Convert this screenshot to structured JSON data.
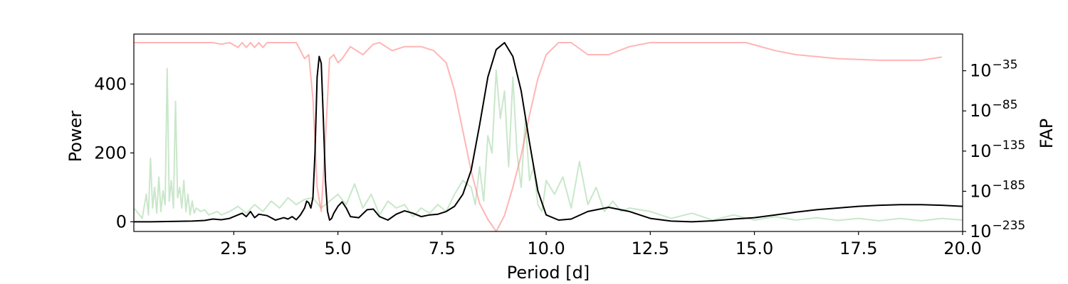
{
  "chart_data": {
    "type": "line",
    "title": "",
    "xlabel": "Period [d]",
    "ylabel": "Power",
    "y2label": "FAP",
    "xlim": [
      0.1,
      20.0
    ],
    "ylim": [
      -28,
      545
    ],
    "y2_log_exponent_range": [
      -235,
      0
    ],
    "x_ticks": [
      2.5,
      5.0,
      7.5,
      10.0,
      12.5,
      15.0,
      17.5,
      20.0
    ],
    "x_tick_labels": [
      "2.5",
      "5.0",
      "7.5",
      "10.0",
      "12.5",
      "15.0",
      "17.5",
      "20.0"
    ],
    "y_ticks": [
      0,
      200,
      400
    ],
    "y_tick_labels": [
      "0",
      "200",
      "400"
    ],
    "y2_ticks": [
      -235,
      -185,
      -135,
      -85,
      -35
    ],
    "y2_tick_base": "10",
    "y2_tick_exponents": [
      "−235",
      "−185",
      "−135",
      "−85",
      "−35"
    ],
    "grid": false,
    "colors": {
      "raw_power": "#4caf50",
      "smoothed_power": "#000000",
      "fap": "#ff6b6b"
    },
    "series": [
      {
        "role": "smoothed_power",
        "axis": "left",
        "x": [
          0.1,
          0.5,
          1.0,
          1.5,
          1.8,
          2.0,
          2.2,
          2.4,
          2.6,
          2.7,
          2.8,
          2.9,
          3.0,
          3.1,
          3.2,
          3.3,
          3.5,
          3.7,
          3.8,
          3.9,
          4.0,
          4.1,
          4.2,
          4.25,
          4.3,
          4.35,
          4.4,
          4.45,
          4.5,
          4.55,
          4.6,
          4.65,
          4.7,
          4.75,
          4.8,
          4.85,
          4.9,
          5.0,
          5.1,
          5.2,
          5.3,
          5.5,
          5.7,
          5.85,
          6.0,
          6.2,
          6.4,
          6.6,
          6.8,
          7.0,
          7.2,
          7.4,
          7.6,
          7.8,
          8.0,
          8.2,
          8.4,
          8.6,
          8.8,
          9.0,
          9.2,
          9.4,
          9.6,
          9.8,
          10.0,
          10.3,
          10.6,
          11.0,
          11.5,
          12.0,
          12.5,
          13.0,
          13.5,
          14.0,
          14.5,
          15.0,
          15.5,
          16.0,
          16.5,
          17.0,
          17.5,
          18.0,
          18.5,
          19.0,
          19.5,
          20.0
        ],
        "y": [
          0,
          0,
          1,
          2,
          4,
          8,
          6,
          10,
          20,
          25,
          15,
          30,
          12,
          22,
          20,
          18,
          5,
          12,
          8,
          15,
          6,
          20,
          40,
          60,
          55,
          40,
          70,
          200,
          420,
          480,
          460,
          300,
          120,
          30,
          5,
          10,
          25,
          45,
          58,
          40,
          15,
          12,
          35,
          37,
          15,
          5,
          22,
          32,
          25,
          15,
          20,
          22,
          30,
          45,
          80,
          150,
          280,
          420,
          500,
          520,
          480,
          380,
          230,
          90,
          20,
          5,
          8,
          30,
          42,
          30,
          10,
          2,
          0,
          3,
          8,
          12,
          20,
          28,
          35,
          40,
          45,
          48,
          50,
          50,
          48,
          45
        ]
      },
      {
        "role": "fap",
        "axis": "right",
        "x": [
          0.1,
          0.5,
          1.0,
          1.5,
          2.0,
          2.2,
          2.4,
          2.6,
          2.7,
          2.8,
          2.9,
          3.0,
          3.1,
          3.2,
          3.3,
          3.5,
          4.0,
          4.1,
          4.2,
          4.3,
          4.4,
          4.5,
          4.6,
          4.7,
          4.8,
          4.9,
          5.0,
          5.1,
          5.3,
          5.6,
          5.85,
          6.0,
          6.3,
          6.6,
          7.0,
          7.3,
          7.6,
          7.8,
          8.0,
          8.2,
          8.4,
          8.6,
          8.8,
          9.0,
          9.2,
          9.4,
          9.6,
          9.8,
          10.0,
          10.3,
          10.6,
          11.0,
          11.5,
          12.0,
          12.5,
          13.0,
          14.0,
          14.8,
          15.5,
          16.0,
          17.0,
          18.0,
          19.0,
          19.5
        ],
        "y": [
          0,
          0,
          0,
          0,
          0,
          -2,
          0,
          -6,
          0,
          -6,
          0,
          -6,
          0,
          -6,
          0,
          0,
          0,
          -10,
          -20,
          -15,
          -70,
          -180,
          -210,
          -120,
          -20,
          -15,
          -25,
          -20,
          -5,
          -15,
          -2,
          0,
          -10,
          -5,
          -5,
          -10,
          -25,
          -60,
          -110,
          -160,
          -200,
          -220,
          -235,
          -215,
          -180,
          -140,
          -90,
          -45,
          -15,
          0,
          0,
          -15,
          -15,
          -5,
          0,
          0,
          0,
          0,
          -10,
          -15,
          -20,
          -22,
          -22,
          -18
        ]
      },
      {
        "role": "raw_power",
        "axis": "left",
        "x": [
          0.1,
          0.3,
          0.4,
          0.45,
          0.5,
          0.55,
          0.6,
          0.65,
          0.7,
          0.75,
          0.8,
          0.85,
          0.9,
          0.95,
          1.0,
          1.05,
          1.1,
          1.15,
          1.2,
          1.25,
          1.3,
          1.35,
          1.4,
          1.45,
          1.5,
          1.55,
          1.6,
          1.7,
          1.8,
          1.9,
          2.0,
          2.1,
          2.2,
          2.4,
          2.6,
          2.8,
          3.0,
          3.2,
          3.4,
          3.6,
          3.8,
          4.0,
          4.2,
          4.4,
          4.6,
          4.8,
          5.0,
          5.2,
          5.4,
          5.6,
          5.8,
          6.0,
          6.2,
          6.4,
          6.6,
          6.8,
          7.0,
          7.2,
          7.4,
          7.6,
          7.8,
          8.0,
          8.2,
          8.3,
          8.4,
          8.5,
          8.6,
          8.7,
          8.8,
          8.9,
          9.0,
          9.1,
          9.2,
          9.3,
          9.4,
          9.5,
          9.6,
          9.7,
          9.8,
          9.9,
          10.0,
          10.2,
          10.4,
          10.6,
          10.8,
          11.0,
          11.2,
          11.4,
          11.6,
          11.8,
          12.0,
          12.5,
          13.0,
          13.5,
          14.0,
          14.5,
          15.0,
          15.5,
          16.0,
          16.5,
          17.0,
          17.5,
          18.0,
          18.5,
          19.0,
          19.5,
          20.0
        ],
        "y": [
          40,
          10,
          80,
          20,
          185,
          40,
          100,
          25,
          130,
          30,
          90,
          50,
          445,
          60,
          120,
          40,
          350,
          70,
          100,
          40,
          120,
          30,
          80,
          20,
          60,
          25,
          40,
          30,
          35,
          20,
          25,
          30,
          20,
          30,
          45,
          25,
          50,
          30,
          60,
          40,
          70,
          50,
          65,
          70,
          40,
          60,
          80,
          50,
          110,
          40,
          80,
          20,
          60,
          40,
          50,
          15,
          40,
          25,
          50,
          30,
          80,
          120,
          100,
          50,
          160,
          60,
          250,
          200,
          440,
          300,
          380,
          160,
          420,
          200,
          100,
          300,
          120,
          160,
          50,
          30,
          120,
          80,
          130,
          40,
          175,
          50,
          100,
          30,
          60,
          30,
          40,
          30,
          10,
          25,
          5,
          20,
          5,
          15,
          5,
          12,
          4,
          10,
          3,
          10,
          3,
          10,
          5
        ]
      }
    ]
  }
}
